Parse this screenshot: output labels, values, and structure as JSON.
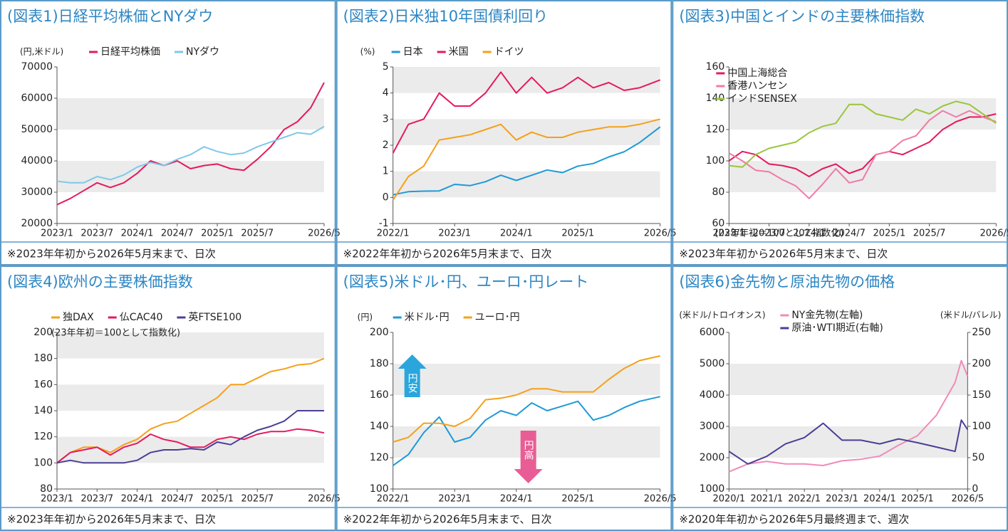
{
  "chart_data": [
    {
      "type": "line",
      "title": "(図表1)日経平均株価とNYダウ",
      "note": "※2023年年初から2026年5月末まで、日次",
      "ylabel": "(円,米ドル)",
      "x": [
        "2023/1",
        "2023/3",
        "2023/5",
        "2023/7",
        "2023/9",
        "2023/11",
        "2024/1",
        "2024/3",
        "2024/5",
        "2024/7",
        "2024/9",
        "2024/11",
        "2025/1",
        "2025/3",
        "2025/5",
        "2025/7",
        "2025/9",
        "2025/11",
        "2026/1",
        "2026/3",
        "2026/5"
      ],
      "xlim": [
        "2023/1",
        "2026/5"
      ],
      "xticks": [
        "2023/1",
        "2023/7",
        "2024/1",
        "2024/7",
        "2025/1",
        "2025/7",
        "2026/5"
      ],
      "ylim": [
        20000,
        70000
      ],
      "yticks": [
        20000,
        30000,
        40000,
        50000,
        60000,
        70000
      ],
      "grid": "bands",
      "legend": "top",
      "legend_direction": "row",
      "series": [
        {
          "name": "日経平均株価",
          "color": "#e5195e",
          "values": [
            26000,
            28000,
            30500,
            33000,
            31500,
            33000,
            36000,
            40000,
            38500,
            40000,
            37500,
            38500,
            39000,
            37500,
            37000,
            40500,
            44500,
            50000,
            52500,
            57000,
            65000
          ]
        },
        {
          "name": "NYダウ",
          "color": "#7fc8ea",
          "values": [
            33500,
            33000,
            33000,
            35000,
            34000,
            35500,
            38000,
            39500,
            38500,
            40500,
            42000,
            44500,
            43000,
            42000,
            42500,
            44500,
            46000,
            47500,
            49000,
            48500,
            51000
          ]
        }
      ]
    },
    {
      "type": "line",
      "title": "(図表2)日米独10年国債利回り",
      "note": "※2022年年初から2026年5月末まで、日次",
      "ylabel": "(%)",
      "x": [
        "2022/1",
        "2022/4",
        "2022/7",
        "2022/10",
        "2023/1",
        "2023/4",
        "2023/7",
        "2023/10",
        "2024/1",
        "2024/4",
        "2024/7",
        "2024/10",
        "2025/1",
        "2025/4",
        "2025/7",
        "2025/10",
        "2026/1",
        "2026/5"
      ],
      "xlim": [
        "2022/1",
        "2026/5"
      ],
      "xticks": [
        "2022/1",
        "2023/1",
        "2024/1",
        "2025/1",
        "2026/5"
      ],
      "ylim": [
        -1,
        5
      ],
      "yticks": [
        -1,
        0,
        1,
        2,
        3,
        4,
        5
      ],
      "grid": "bands",
      "legend": "top",
      "legend_direction": "row",
      "series": [
        {
          "name": "日本",
          "color": "#1e9ad6",
          "values": [
            0.1,
            0.22,
            0.24,
            0.25,
            0.5,
            0.45,
            0.6,
            0.85,
            0.65,
            0.85,
            1.05,
            0.95,
            1.2,
            1.3,
            1.55,
            1.75,
            2.1,
            2.7
          ]
        },
        {
          "name": "米国",
          "color": "#e5195e",
          "values": [
            1.7,
            2.8,
            3.0,
            4.0,
            3.5,
            3.5,
            4.0,
            4.8,
            4.0,
            4.6,
            4.0,
            4.2,
            4.6,
            4.2,
            4.4,
            4.1,
            4.2,
            4.5
          ]
        },
        {
          "name": "ドイツ",
          "color": "#f5a01a",
          "values": [
            -0.1,
            0.8,
            1.2,
            2.2,
            2.3,
            2.4,
            2.6,
            2.8,
            2.2,
            2.5,
            2.3,
            2.3,
            2.5,
            2.6,
            2.7,
            2.7,
            2.8,
            3.0
          ]
        }
      ]
    },
    {
      "type": "line",
      "title": "(図表3)中国とインドの主要株価指数",
      "note": "※2023年年初から2026年5月末まで、日次",
      "annotation": "(23年年初＝100として指数化)",
      "x": [
        "2023/1",
        "2023/3",
        "2023/5",
        "2023/7",
        "2023/9",
        "2023/11",
        "2024/1",
        "2024/3",
        "2024/5",
        "2024/7",
        "2024/9",
        "2024/11",
        "2025/1",
        "2025/3",
        "2025/5",
        "2025/7",
        "2025/9",
        "2025/11",
        "2026/1",
        "2026/3",
        "2026/5"
      ],
      "xlim": [
        "2023/1",
        "2026/5"
      ],
      "xticks": [
        "2023/1",
        "2023/7",
        "2024/1",
        "2024/7",
        "2025/1",
        "2025/7",
        "2026/5"
      ],
      "ylim": [
        60,
        160
      ],
      "yticks": [
        60,
        80,
        100,
        120,
        140,
        160
      ],
      "grid": "bands",
      "legend": "top-left",
      "legend_direction": "column",
      "series": [
        {
          "name": "中国上海総合",
          "color": "#e5195e",
          "values": [
            100,
            106,
            104,
            98,
            97,
            95,
            90,
            95,
            98,
            92,
            95,
            104,
            106,
            104,
            108,
            112,
            120,
            125,
            128,
            128,
            130
          ]
        },
        {
          "name": "香港ハンセン",
          "color": "#f07aa8",
          "values": [
            105,
            100,
            94,
            93,
            88,
            84,
            76,
            85,
            95,
            86,
            88,
            104,
            106,
            113,
            116,
            126,
            132,
            128,
            132,
            128,
            125
          ]
        },
        {
          "name": "インドSENSEX",
          "color": "#9bc53d",
          "values": [
            97,
            96,
            104,
            108,
            110,
            112,
            118,
            122,
            124,
            136,
            136,
            130,
            128,
            126,
            133,
            130,
            135,
            138,
            136,
            130,
            124
          ]
        }
      ]
    },
    {
      "type": "line",
      "title": "(図表4)欧州の主要株価指数",
      "note": "※2023年年初から2026年5月末まで、日次",
      "annotation": "(23年年初＝100として指数化)",
      "x": [
        "2023/1",
        "2023/3",
        "2023/5",
        "2023/7",
        "2023/9",
        "2023/11",
        "2024/1",
        "2024/3",
        "2024/5",
        "2024/7",
        "2024/9",
        "2024/11",
        "2025/1",
        "2025/3",
        "2025/5",
        "2025/7",
        "2025/9",
        "2025/11",
        "2026/1",
        "2026/3",
        "2026/5"
      ],
      "xlim": [
        "2023/1",
        "2026/5"
      ],
      "xticks": [
        "2023/1",
        "2023/7",
        "2024/1",
        "2024/7",
        "2025/1",
        "2025/7",
        "2026/5"
      ],
      "ylim": [
        80,
        200
      ],
      "yticks": [
        80,
        100,
        120,
        140,
        160,
        180,
        200
      ],
      "grid": "bands",
      "legend": "top",
      "legend_direction": "row",
      "series": [
        {
          "name": "独DAX",
          "color": "#f5a01a",
          "values": [
            100,
            108,
            112,
            112,
            108,
            114,
            118,
            126,
            130,
            132,
            138,
            144,
            150,
            160,
            160,
            165,
            170,
            172,
            175,
            176,
            180
          ]
        },
        {
          "name": "仏CAC40",
          "color": "#e5195e",
          "values": [
            100,
            108,
            110,
            112,
            106,
            112,
            115,
            122,
            118,
            116,
            112,
            112,
            118,
            120,
            118,
            122,
            124,
            124,
            126,
            125,
            123
          ]
        },
        {
          "name": "英FTSE100",
          "color": "#4a3f96",
          "values": [
            100,
            102,
            100,
            100,
            100,
            100,
            102,
            108,
            110,
            110,
            111,
            110,
            116,
            114,
            120,
            125,
            128,
            132,
            140,
            140,
            140
          ]
        }
      ]
    },
    {
      "type": "line",
      "title": "(図表5)米ドル･円、ユーロ･円レート",
      "note": "※2022年年初から2026年5月末まで、日次",
      "ylabel": "(円)",
      "annotations": [
        "円安",
        "円高"
      ],
      "x": [
        "2022/1",
        "2022/4",
        "2022/7",
        "2022/10",
        "2023/1",
        "2023/4",
        "2023/7",
        "2023/10",
        "2024/1",
        "2024/4",
        "2024/7",
        "2024/10",
        "2025/1",
        "2025/4",
        "2025/7",
        "2025/10",
        "2026/1",
        "2026/5"
      ],
      "xlim": [
        "2022/1",
        "2026/5"
      ],
      "xticks": [
        "2022/1",
        "2023/1",
        "2024/1",
        "2025/1",
        "2026/5"
      ],
      "ylim": [
        100,
        200
      ],
      "yticks": [
        100,
        120,
        140,
        160,
        180,
        200
      ],
      "grid": "bands",
      "legend": "top",
      "legend_direction": "row",
      "series": [
        {
          "name": "米ドル･円",
          "color": "#1e9ad6",
          "values": [
            115,
            122,
            136,
            146,
            130,
            133,
            144,
            150,
            147,
            155,
            150,
            153,
            156,
            144,
            147,
            152,
            156,
            159
          ]
        },
        {
          "name": "ユーロ･円",
          "color": "#f5a01a",
          "values": [
            130,
            133,
            142,
            142,
            140,
            145,
            157,
            158,
            160,
            164,
            164,
            162,
            162,
            162,
            170,
            177,
            182,
            185
          ]
        }
      ]
    },
    {
      "type": "line",
      "title": "(図表6)金先物と原油先物の価格",
      "note": "※2020年年初から2026年5月最終週まで、週次",
      "ylabel": "(米ドル/トロイオンス)",
      "y2label": "(米ドル/バレル)",
      "x": [
        "2020/1",
        "2020/7",
        "2021/1",
        "2021/7",
        "2022/1",
        "2022/7",
        "2023/1",
        "2023/7",
        "2024/1",
        "2024/7",
        "2025/1",
        "2025/7",
        "2026/1",
        "2026/3",
        "2026/5"
      ],
      "xlim": [
        "2020/1",
        "2026/5"
      ],
      "xticks": [
        "2020/1",
        "2021/1",
        "2022/1",
        "2023/1",
        "2024/1",
        "2025/1",
        "2026/5"
      ],
      "ylim": [
        1000,
        6000
      ],
      "yticks": [
        1000,
        2000,
        3000,
        4000,
        5000,
        6000
      ],
      "y2lim": [
        0,
        250
      ],
      "y2ticks": [
        0,
        50,
        100,
        150,
        200,
        250
      ],
      "grid": "bands",
      "legend": "top",
      "legend_direction": "column",
      "series": [
        {
          "name": "NY金先物(左軸)",
          "color": "#f08bb8",
          "values": [
            1550,
            1800,
            1880,
            1800,
            1800,
            1750,
            1900,
            1950,
            2050,
            2400,
            2700,
            3350,
            4400,
            5100,
            4600
          ]
        },
        {
          "name": "原油･WTI期近(右軸)",
          "color": "#4a3f96",
          "axis": "y2",
          "values": [
            60,
            40,
            52,
            72,
            82,
            105,
            78,
            78,
            72,
            80,
            74,
            67,
            60,
            110,
            95
          ]
        }
      ]
    }
  ]
}
